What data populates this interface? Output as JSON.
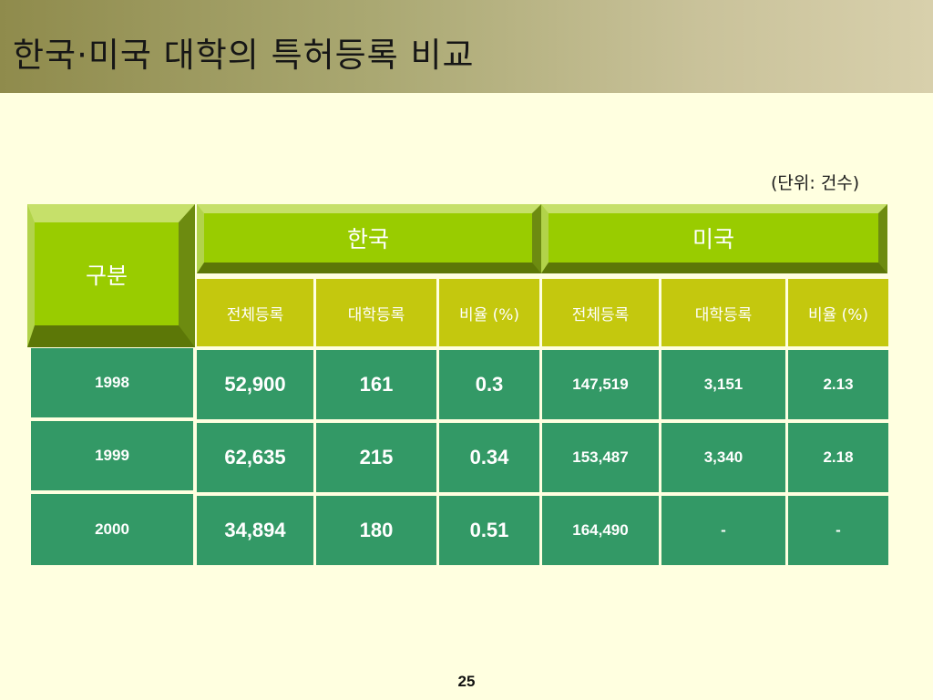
{
  "title": "한국·미국 대학의 특허등록 비교",
  "unit_note": "(단위: 건수)",
  "table": {
    "row_header": "구분",
    "groups": [
      "한국",
      "미국"
    ],
    "subheaders": [
      "전체등록",
      "대학등록",
      "비율 (%)",
      "전체등록",
      "대학등록",
      "비율 (%)"
    ],
    "rows": [
      {
        "year": "1998",
        "cells": [
          "52,900",
          "161",
          "0.3",
          "147,519",
          "3,151",
          "2.13"
        ]
      },
      {
        "year": "1999",
        "cells": [
          "62,635",
          "215",
          "0.34",
          "153,487",
          "3,340",
          "2.18"
        ]
      },
      {
        "year": "2000",
        "cells": [
          "34,894",
          "180",
          "0.51",
          "164,490",
          "-",
          "-"
        ]
      }
    ]
  },
  "page_number": "25",
  "colors": {
    "background": "#ffffe0",
    "header_green": "#99cc00",
    "subheader_olive": "#c4c80e",
    "data_green": "#339966"
  }
}
